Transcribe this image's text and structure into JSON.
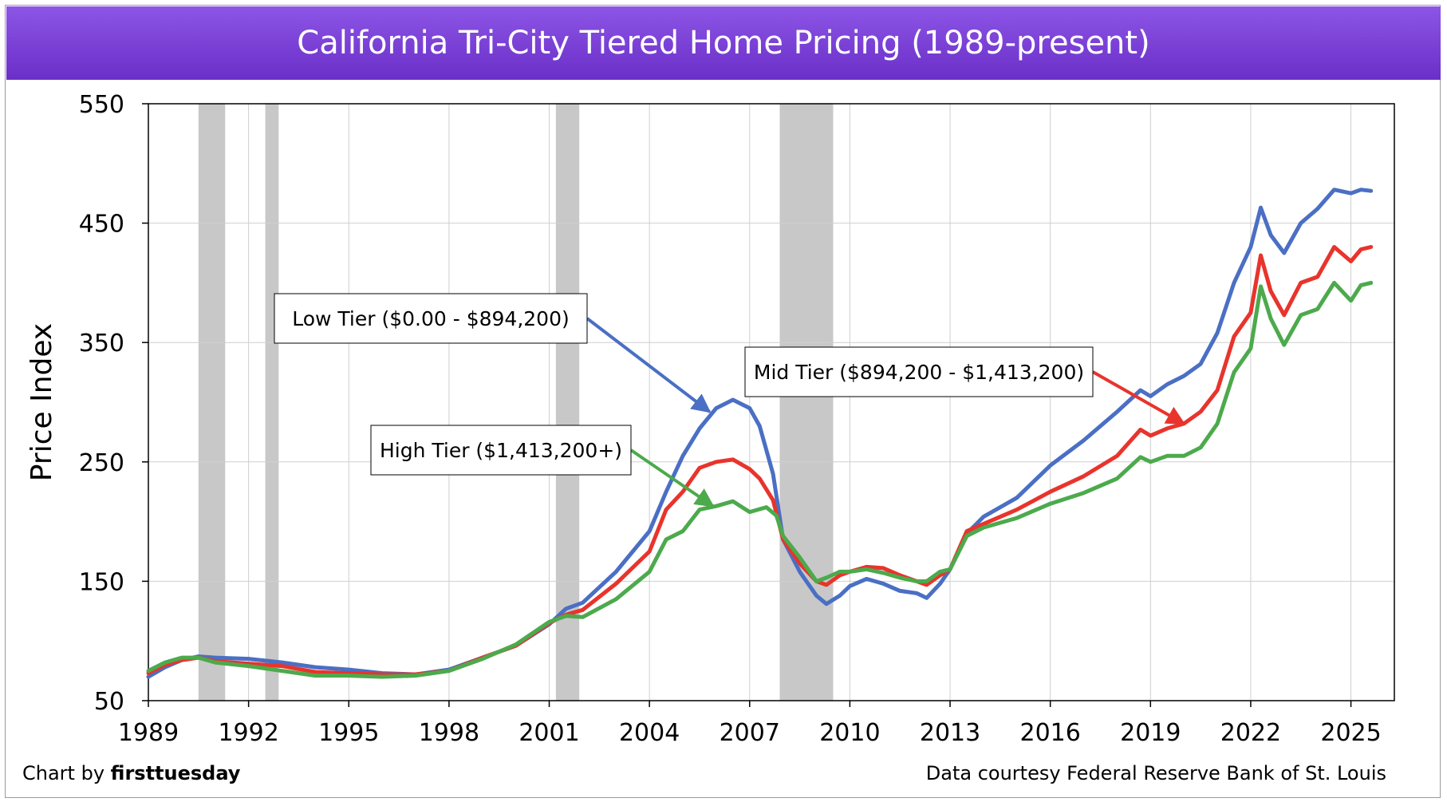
{
  "title": "California Tri-City Tiered Home Pricing (1989-present)",
  "footer": {
    "credit_prefix": "Chart by ",
    "credit_brand": "firsttuesday",
    "source": "Data courtesy Federal Reserve Bank of St. Louis"
  },
  "colors": {
    "low": "#4a6fc4",
    "mid": "#e8342c",
    "high": "#4caa4c",
    "recession": "#c8c8c8",
    "title_bg": "#7a3fd8"
  },
  "chart_data": {
    "type": "line",
    "ylabel": "Price Index",
    "xlabel": "",
    "xlim": [
      1989,
      2026.3
    ],
    "ylim": [
      50,
      550
    ],
    "yticks": [
      50,
      150,
      250,
      350,
      450,
      550
    ],
    "xticks": [
      1989,
      1992,
      1995,
      1998,
      2001,
      2004,
      2007,
      2010,
      2013,
      2016,
      2019,
      2022,
      2025
    ],
    "grid": true,
    "recessions": [
      [
        1990.5,
        1991.3
      ],
      [
        1992.5,
        1992.9
      ],
      [
        2001.2,
        2001.9
      ],
      [
        2007.9,
        2009.5
      ]
    ],
    "series": [
      {
        "name": "Low Tier ($0.00 - $894,200)",
        "key": "low",
        "points": [
          [
            1989,
            70
          ],
          [
            1989.5,
            78
          ],
          [
            1990,
            84
          ],
          [
            1990.5,
            87
          ],
          [
            1991,
            86
          ],
          [
            1992,
            85
          ],
          [
            1993,
            82
          ],
          [
            1994,
            78
          ],
          [
            1995,
            76
          ],
          [
            1996,
            73
          ],
          [
            1997,
            72
          ],
          [
            1998,
            76
          ],
          [
            1999,
            86
          ],
          [
            2000,
            96
          ],
          [
            2001,
            114
          ],
          [
            2001.5,
            127
          ],
          [
            2002,
            132
          ],
          [
            2003,
            158
          ],
          [
            2004,
            192
          ],
          [
            2004.5,
            225
          ],
          [
            2005,
            255
          ],
          [
            2005.5,
            278
          ],
          [
            2006,
            295
          ],
          [
            2006.5,
            302
          ],
          [
            2007,
            295
          ],
          [
            2007.3,
            280
          ],
          [
            2007.7,
            240
          ],
          [
            2008,
            185
          ],
          [
            2008.5,
            158
          ],
          [
            2009,
            138
          ],
          [
            2009.3,
            131
          ],
          [
            2009.7,
            138
          ],
          [
            2010,
            146
          ],
          [
            2010.5,
            152
          ],
          [
            2011,
            148
          ],
          [
            2011.5,
            142
          ],
          [
            2012,
            140
          ],
          [
            2012.3,
            136
          ],
          [
            2012.7,
            148
          ],
          [
            2013,
            160
          ],
          [
            2013.5,
            190
          ],
          [
            2014,
            204
          ],
          [
            2015,
            220
          ],
          [
            2016,
            247
          ],
          [
            2017,
            268
          ],
          [
            2018,
            292
          ],
          [
            2018.7,
            310
          ],
          [
            2019,
            305
          ],
          [
            2019.5,
            315
          ],
          [
            2020,
            322
          ],
          [
            2020.5,
            332
          ],
          [
            2021,
            358
          ],
          [
            2021.5,
            400
          ],
          [
            2022,
            430
          ],
          [
            2022.3,
            463
          ],
          [
            2022.6,
            440
          ],
          [
            2023,
            425
          ],
          [
            2023.5,
            450
          ],
          [
            2024,
            462
          ],
          [
            2024.5,
            478
          ],
          [
            2025,
            475
          ],
          [
            2025.3,
            478
          ],
          [
            2025.6,
            477
          ]
        ]
      },
      {
        "name": "Mid Tier ($894,200 - $1,413,200)",
        "key": "mid",
        "points": [
          [
            1989,
            73
          ],
          [
            1989.5,
            80
          ],
          [
            1990,
            84
          ],
          [
            1990.5,
            86
          ],
          [
            1991,
            83
          ],
          [
            1992,
            81
          ],
          [
            1993,
            79
          ],
          [
            1994,
            74
          ],
          [
            1995,
            73
          ],
          [
            1996,
            72
          ],
          [
            1997,
            72
          ],
          [
            1998,
            75
          ],
          [
            1999,
            86
          ],
          [
            2000,
            96
          ],
          [
            2001,
            115
          ],
          [
            2001.5,
            122
          ],
          [
            2002,
            126
          ],
          [
            2003,
            148
          ],
          [
            2004,
            175
          ],
          [
            2004.5,
            210
          ],
          [
            2005,
            225
          ],
          [
            2005.5,
            245
          ],
          [
            2006,
            250
          ],
          [
            2006.5,
            252
          ],
          [
            2007,
            244
          ],
          [
            2007.3,
            236
          ],
          [
            2007.7,
            218
          ],
          [
            2008,
            185
          ],
          [
            2008.5,
            165
          ],
          [
            2009,
            150
          ],
          [
            2009.3,
            147
          ],
          [
            2009.7,
            155
          ],
          [
            2010,
            158
          ],
          [
            2010.5,
            162
          ],
          [
            2011,
            161
          ],
          [
            2011.5,
            155
          ],
          [
            2012,
            150
          ],
          [
            2012.3,
            147
          ],
          [
            2012.7,
            155
          ],
          [
            2013,
            160
          ],
          [
            2013.5,
            192
          ],
          [
            2014,
            198
          ],
          [
            2015,
            210
          ],
          [
            2016,
            225
          ],
          [
            2017,
            238
          ],
          [
            2018,
            255
          ],
          [
            2018.7,
            277
          ],
          [
            2019,
            272
          ],
          [
            2019.5,
            278
          ],
          [
            2020,
            282
          ],
          [
            2020.5,
            292
          ],
          [
            2021,
            310
          ],
          [
            2021.5,
            355
          ],
          [
            2022,
            375
          ],
          [
            2022.3,
            423
          ],
          [
            2022.6,
            393
          ],
          [
            2023,
            373
          ],
          [
            2023.5,
            400
          ],
          [
            2024,
            405
          ],
          [
            2024.5,
            430
          ],
          [
            2025,
            418
          ],
          [
            2025.3,
            428
          ],
          [
            2025.6,
            430
          ]
        ]
      },
      {
        "name": "High Tier ($1,413,200+)",
        "key": "high",
        "points": [
          [
            1989,
            75
          ],
          [
            1989.5,
            82
          ],
          [
            1990,
            86
          ],
          [
            1990.5,
            86
          ],
          [
            1991,
            82
          ],
          [
            1992,
            79
          ],
          [
            1993,
            75
          ],
          [
            1994,
            71
          ],
          [
            1995,
            71
          ],
          [
            1996,
            70
          ],
          [
            1997,
            71
          ],
          [
            1998,
            75
          ],
          [
            1999,
            85
          ],
          [
            2000,
            97
          ],
          [
            2001,
            116
          ],
          [
            2001.5,
            121
          ],
          [
            2002,
            120
          ],
          [
            2003,
            135
          ],
          [
            2004,
            158
          ],
          [
            2004.5,
            185
          ],
          [
            2005,
            192
          ],
          [
            2005.5,
            210
          ],
          [
            2006,
            213
          ],
          [
            2006.5,
            217
          ],
          [
            2007,
            208
          ],
          [
            2007.5,
            212
          ],
          [
            2007.8,
            205
          ],
          [
            2008,
            188
          ],
          [
            2008.5,
            170
          ],
          [
            2009,
            150
          ],
          [
            2009.3,
            153
          ],
          [
            2009.7,
            158
          ],
          [
            2010,
            158
          ],
          [
            2010.5,
            160
          ],
          [
            2011,
            157
          ],
          [
            2011.5,
            153
          ],
          [
            2012,
            150
          ],
          [
            2012.3,
            150
          ],
          [
            2012.7,
            158
          ],
          [
            2013,
            160
          ],
          [
            2013.5,
            188
          ],
          [
            2014,
            195
          ],
          [
            2015,
            203
          ],
          [
            2016,
            215
          ],
          [
            2017,
            224
          ],
          [
            2018,
            236
          ],
          [
            2018.7,
            254
          ],
          [
            2019,
            250
          ],
          [
            2019.5,
            255
          ],
          [
            2020,
            255
          ],
          [
            2020.5,
            262
          ],
          [
            2021,
            282
          ],
          [
            2021.5,
            325
          ],
          [
            2022,
            345
          ],
          [
            2022.3,
            397
          ],
          [
            2022.6,
            370
          ],
          [
            2023,
            348
          ],
          [
            2023.5,
            373
          ],
          [
            2024,
            378
          ],
          [
            2024.5,
            400
          ],
          [
            2025,
            385
          ],
          [
            2025.3,
            398
          ],
          [
            2025.6,
            400
          ]
        ]
      }
    ],
    "annotations": [
      {
        "text": "Low Tier ($0.00 - $894,200)",
        "key": "low",
        "target": [
          2005.8,
          292
        ]
      },
      {
        "text": "Mid Tier ($894,200 - $1,413,200)",
        "key": "mid",
        "target": [
          2020.0,
          282
        ]
      },
      {
        "text": "High Tier ($1,413,200+)",
        "key": "high",
        "target": [
          2005.9,
          213
        ]
      }
    ]
  }
}
